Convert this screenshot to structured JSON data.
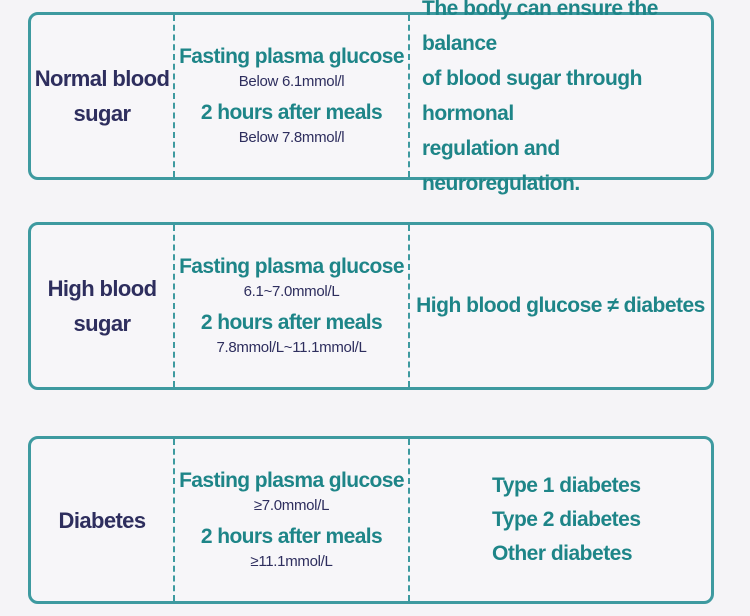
{
  "rows": [
    {
      "label_line1": "Normal blood",
      "label_line2": "sugar",
      "fasting_heading": "Fasting plasma glucose",
      "fasting_value": "Below 6.1mmol/l",
      "after_heading": "2 hours after meals",
      "after_value": "Below 7.8mmol/l",
      "description_lines": [
        "The body can ensure the balance",
        "of blood sugar through hormonal",
        "regulation and neuroregulation."
      ]
    },
    {
      "label_line1": "High blood",
      "label_line2": "sugar",
      "fasting_heading": "Fasting plasma glucose",
      "fasting_value": "6.1~7.0mmol/L",
      "after_heading": "2 hours after meals",
      "after_value": "7.8mmol/L~11.1mmol/L",
      "description": "High blood glucose ≠ diabetes"
    },
    {
      "label_line1": "Diabetes",
      "fasting_heading": "Fasting plasma glucose",
      "fasting_value": "≥7.0mmol/L",
      "after_heading": "2 hours after meals",
      "after_value": "≥11.1mmol/L",
      "types": [
        "Type 1 diabetes",
        "Type 2 diabetes",
        "Other diabetes"
      ]
    }
  ],
  "colors": {
    "border": "#3e9aa0",
    "teal_text": "#1e8588",
    "navy_text": "#2e2e5e",
    "background": "#f5f4f7"
  }
}
